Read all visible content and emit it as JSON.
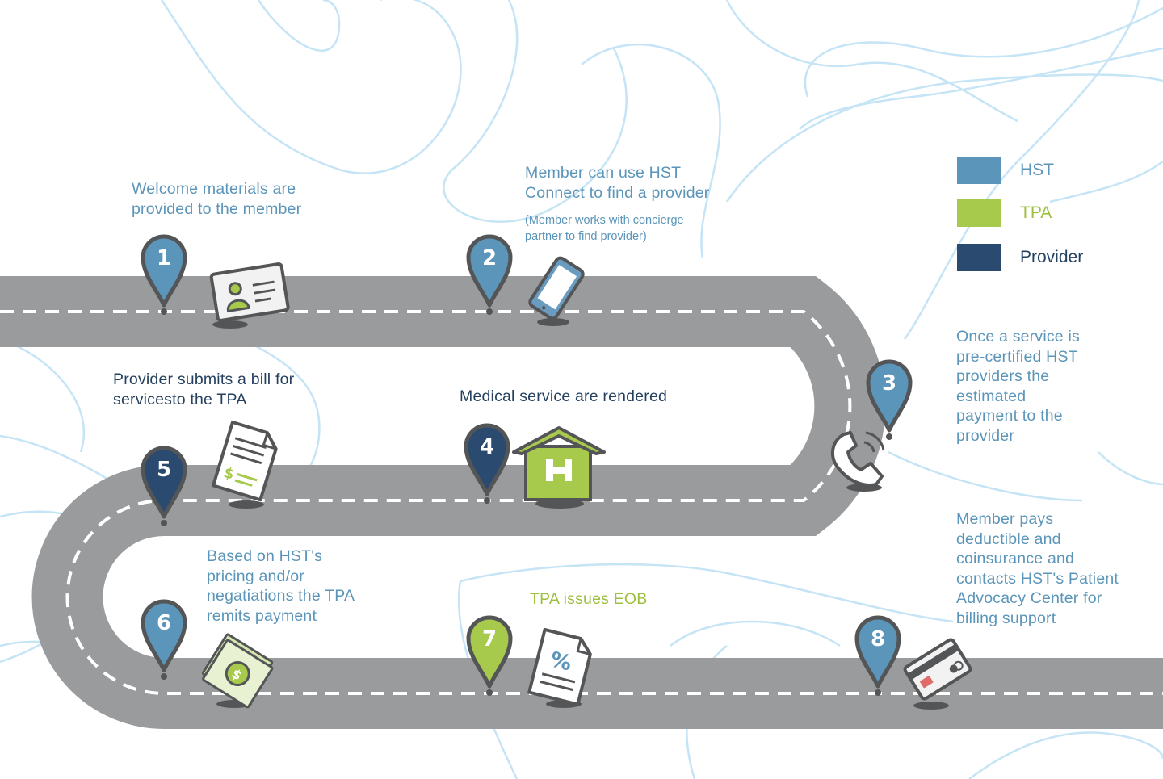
{
  "colors": {
    "hst": "#5b95b9",
    "tpa": "#a7c94c",
    "provider": "#2b4a6f",
    "road": "#9a9b9d",
    "stroke": "#545557",
    "background_lines": "#c5e4f5"
  },
  "legend": [
    {
      "label": "HST",
      "color": "#5b95b9"
    },
    {
      "label": "TPA",
      "color": "#a7c94c"
    },
    {
      "label": "Provider",
      "color": "#2b4a6f"
    }
  ],
  "steps": [
    {
      "number": "1",
      "owner": "hst",
      "text": "Welcome materials are\nprovided to the member",
      "note": "",
      "icon": "id-card-icon"
    },
    {
      "number": "2",
      "owner": "hst",
      "text": "Member can use HST\nConnect to find a provider",
      "note": "(Member works with concierge\npartner to find provider)",
      "icon": "smartphone-icon"
    },
    {
      "number": "3",
      "owner": "hst",
      "text": "Once a service is\npre-certified HST\nproviders the\nestimated\npayment to the\nprovider",
      "note": "",
      "icon": "phone-call-icon"
    },
    {
      "number": "4",
      "owner": "provider",
      "text": "Medical service are rendered",
      "note": "",
      "icon": "hospital-icon"
    },
    {
      "number": "5",
      "owner": "provider",
      "text": "Provider submits a bill for\nservicesto the TPA",
      "note": "",
      "icon": "bill-document-icon"
    },
    {
      "number": "6",
      "owner": "hst",
      "text": "Based on HST's\npricing and/or\nnegatiations the TPA\nremits payment",
      "note": "",
      "icon": "cash-icon"
    },
    {
      "number": "7",
      "owner": "tpa",
      "text": "TPA issues EOB",
      "note": "",
      "icon": "eob-document-icon"
    },
    {
      "number": "8",
      "owner": "hst",
      "text": "Member pays\ndeductible and\ncoinsurance and\ncontacts HST's Patient\nAdvocacy Center for\nbilling support",
      "note": "",
      "icon": "credit-card-icon"
    }
  ]
}
